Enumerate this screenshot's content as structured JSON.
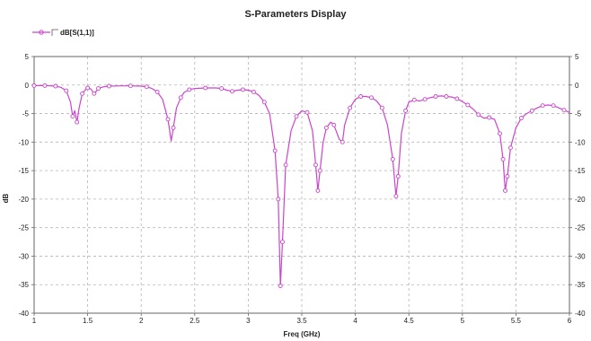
{
  "chart_data": {
    "type": "line",
    "title": "S-Parameters Display",
    "xlabel": "Freq (GHz)",
    "ylabel": "dB",
    "xlim": [
      1,
      6
    ],
    "ylim": [
      -40,
      5
    ],
    "x_ticks": [
      "1",
      "1.5",
      "2",
      "2.5",
      "3",
      "3.5",
      "4",
      "4.5",
      "5",
      "5.5",
      "6"
    ],
    "y_ticks": [
      "5",
      "0",
      "-5",
      "-10",
      "-15",
      "-20",
      "-25",
      "-30",
      "-35",
      "-40"
    ],
    "grid": true,
    "legend_position": "top-left",
    "series": [
      {
        "name": "dB[S(1,1)]",
        "color": "#cc44cc",
        "marker": "circle",
        "points": [
          [
            1.0,
            -0.1
          ],
          [
            1.05,
            -0.1
          ],
          [
            1.1,
            -0.1
          ],
          [
            1.15,
            -0.15
          ],
          [
            1.2,
            -0.2
          ],
          [
            1.25,
            -0.4
          ],
          [
            1.3,
            -1.0
          ],
          [
            1.34,
            -3.0
          ],
          [
            1.36,
            -5.5
          ],
          [
            1.38,
            -4.5
          ],
          [
            1.4,
            -6.5
          ],
          [
            1.42,
            -4.0
          ],
          [
            1.45,
            -1.5
          ],
          [
            1.48,
            -0.8
          ],
          [
            1.5,
            -0.5
          ],
          [
            1.53,
            -0.7
          ],
          [
            1.56,
            -1.5
          ],
          [
            1.58,
            -1.1
          ],
          [
            1.6,
            -0.6
          ],
          [
            1.65,
            -0.3
          ],
          [
            1.7,
            -0.2
          ],
          [
            1.8,
            -0.15
          ],
          [
            1.9,
            -0.15
          ],
          [
            2.0,
            -0.2
          ],
          [
            2.05,
            -0.3
          ],
          [
            2.1,
            -0.6
          ],
          [
            2.15,
            -1.2
          ],
          [
            2.2,
            -2.5
          ],
          [
            2.25,
            -6.0
          ],
          [
            2.28,
            -9.8
          ],
          [
            2.3,
            -7.5
          ],
          [
            2.33,
            -4.0
          ],
          [
            2.37,
            -2.2
          ],
          [
            2.4,
            -1.3
          ],
          [
            2.45,
            -0.8
          ],
          [
            2.5,
            -0.6
          ],
          [
            2.6,
            -0.5
          ],
          [
            2.7,
            -0.5
          ],
          [
            2.75,
            -0.6
          ],
          [
            2.8,
            -0.9
          ],
          [
            2.85,
            -1.1
          ],
          [
            2.9,
            -0.9
          ],
          [
            2.95,
            -0.8
          ],
          [
            3.0,
            -0.9
          ],
          [
            3.05,
            -1.2
          ],
          [
            3.1,
            -1.8
          ],
          [
            3.15,
            -3.0
          ],
          [
            3.2,
            -5.0
          ],
          [
            3.25,
            -11.5
          ],
          [
            3.28,
            -20.0
          ],
          [
            3.3,
            -35.2
          ],
          [
            3.32,
            -27.5
          ],
          [
            3.35,
            -14.0
          ],
          [
            3.4,
            -8.0
          ],
          [
            3.45,
            -5.5
          ],
          [
            3.5,
            -4.5
          ],
          [
            3.55,
            -4.8
          ],
          [
            3.6,
            -8.0
          ],
          [
            3.63,
            -14.0
          ],
          [
            3.65,
            -18.5
          ],
          [
            3.67,
            -15.0
          ],
          [
            3.7,
            -10.0
          ],
          [
            3.73,
            -7.5
          ],
          [
            3.77,
            -6.5
          ],
          [
            3.8,
            -7.0
          ],
          [
            3.85,
            -9.5
          ],
          [
            3.88,
            -10.0
          ],
          [
            3.9,
            -7.0
          ],
          [
            3.95,
            -4.0
          ],
          [
            4.0,
            -2.5
          ],
          [
            4.05,
            -2.0
          ],
          [
            4.1,
            -2.0
          ],
          [
            4.15,
            -2.2
          ],
          [
            4.2,
            -2.8
          ],
          [
            4.25,
            -4.0
          ],
          [
            4.3,
            -7.0
          ],
          [
            4.35,
            -13.0
          ],
          [
            4.38,
            -19.5
          ],
          [
            4.4,
            -16.0
          ],
          [
            4.43,
            -8.5
          ],
          [
            4.47,
            -4.5
          ],
          [
            4.5,
            -3.0
          ],
          [
            4.55,
            -2.6
          ],
          [
            4.6,
            -2.8
          ],
          [
            4.65,
            -2.5
          ],
          [
            4.7,
            -2.2
          ],
          [
            4.75,
            -2.0
          ],
          [
            4.8,
            -1.9
          ],
          [
            4.85,
            -2.0
          ],
          [
            4.9,
            -2.1
          ],
          [
            4.95,
            -2.4
          ],
          [
            5.0,
            -2.9
          ],
          [
            5.05,
            -3.5
          ],
          [
            5.1,
            -4.2
          ],
          [
            5.15,
            -5.2
          ],
          [
            5.2,
            -5.8
          ],
          [
            5.25,
            -5.7
          ],
          [
            5.3,
            -6.0
          ],
          [
            5.35,
            -8.5
          ],
          [
            5.38,
            -13.0
          ],
          [
            5.4,
            -18.5
          ],
          [
            5.42,
            -16.0
          ],
          [
            5.45,
            -11.0
          ],
          [
            5.5,
            -7.5
          ],
          [
            5.55,
            -5.8
          ],
          [
            5.6,
            -5.0
          ],
          [
            5.65,
            -4.5
          ],
          [
            5.7,
            -4.0
          ],
          [
            5.75,
            -3.6
          ],
          [
            5.8,
            -3.5
          ],
          [
            5.85,
            -3.6
          ],
          [
            5.9,
            -4.0
          ],
          [
            5.95,
            -4.4
          ],
          [
            6.0,
            -4.8
          ]
        ]
      }
    ]
  }
}
